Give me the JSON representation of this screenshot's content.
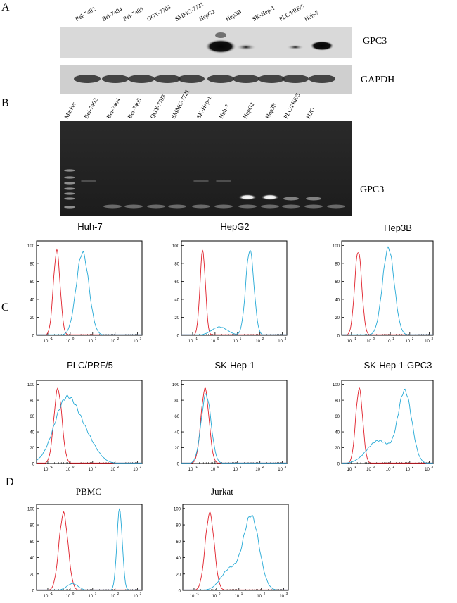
{
  "panels": {
    "a": "A",
    "b": "B",
    "c": "C",
    "d": "D"
  },
  "western_blot": {
    "lanes": [
      "Bel-7402",
      "Bel-7404",
      "Bel-7405",
      "QGY-7703",
      "SMMC-7721",
      "HepG2",
      "Hep3B",
      "SK-Hep-1",
      "PLC/PRF/5",
      "Huh-7"
    ],
    "gpc3_label": "GPC3",
    "gapdh_label": "GAPDH"
  },
  "gel": {
    "lanes": [
      "Marker",
      "Bel-7402",
      "Bel-7404",
      "Bel-7405",
      "QGY-7703",
      "SMMC-7721",
      "SK-Hep-1",
      "Huh-7",
      "HepG2",
      "Hep3B",
      "PLC/PRF/5",
      "H2O"
    ],
    "band_label": "GPC3"
  },
  "flow": {
    "x_ticks": [
      "10",
      "10",
      "10",
      "10",
      "10"
    ],
    "x_exp": [
      "-1",
      "0",
      "1",
      "2",
      "3"
    ],
    "y_ticks": [
      "0",
      "20",
      "40",
      "60",
      "80",
      "100"
    ],
    "colors": {
      "isotype": "#e0202a",
      "stain": "#25a9d6"
    },
    "plots": [
      {
        "title": "Huh-7",
        "iso_mu": -0.6,
        "iso_sd": 0.15,
        "stain_mu": 0.55,
        "stain_sd": 0.28,
        "stain_peak": 90
      },
      {
        "title": "HepG2",
        "iso_mu": -0.55,
        "iso_sd": 0.12,
        "stain_mu": 1.55,
        "stain_sd": 0.18,
        "stain_peak": 93
      },
      {
        "title": "Hep3B",
        "iso_mu": -0.65,
        "iso_sd": 0.18,
        "stain_mu": 0.9,
        "stain_sd": 0.3,
        "stain_peak": 95
      },
      {
        "title": "PLC/PRF/5",
        "iso_mu": -0.55,
        "iso_sd": 0.18,
        "stain_mu": -0.15,
        "stain_sd": 0.55,
        "stain_peak": 80
      },
      {
        "title": "SK-Hep-1",
        "iso_mu": -0.45,
        "iso_sd": 0.18,
        "stain_mu": -0.4,
        "stain_sd": 0.22,
        "stain_peak": 85
      },
      {
        "title": "SK-Hep-1-GPC3",
        "iso_mu": -0.6,
        "iso_sd": 0.18,
        "stain_mu": 1.75,
        "stain_sd": 0.35,
        "stain_peak": 88
      },
      {
        "title": "PBMC",
        "iso_mu": -0.3,
        "iso_sd": 0.2,
        "stain_mu": 2.2,
        "stain_sd": 0.12,
        "stain_peak": 97
      },
      {
        "title": "Jurkat",
        "iso_mu": -0.3,
        "iso_sd": 0.2,
        "stain_mu": 1.55,
        "stain_sd": 0.35,
        "stain_peak": 88
      }
    ]
  }
}
